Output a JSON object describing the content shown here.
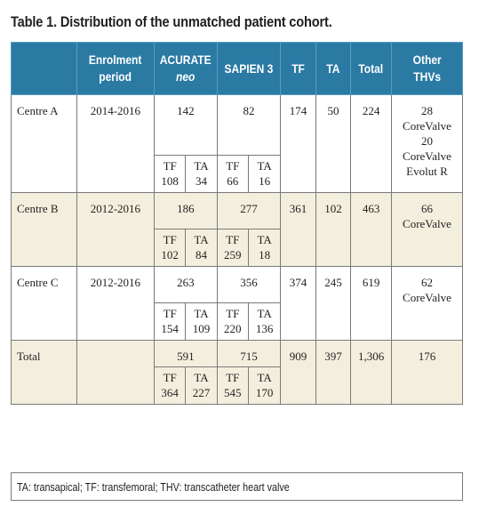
{
  "title": "Table 1. Distribution of the unmatched patient cohort.",
  "headers": {
    "enrolment_l1": "Enrolment",
    "enrolment_l2": "period",
    "acurate_l1": "ACURATE",
    "acurate_l2": "neo",
    "sapien": "SAPIEN 3",
    "tf": "TF",
    "ta": "TA",
    "total": "Total",
    "other_l1": "Other",
    "other_l2": "THVs"
  },
  "sub_labels": {
    "tf": "TF",
    "ta": "TA"
  },
  "rows": [
    {
      "centre": "Centre A",
      "period": "2014-2016",
      "acurate": "142",
      "sapien": "82",
      "tf": "174",
      "ta": "50",
      "total": "224",
      "other_l1": "28",
      "other_l2": "CoreValve",
      "other_l3": "20",
      "other_l4": "CoreValve",
      "other_l5": "Evolut R",
      "acurate_tf": "108",
      "acurate_ta": "34",
      "sapien_tf": "66",
      "sapien_ta": "16"
    },
    {
      "centre": "Centre B",
      "period": "2012-2016",
      "acurate": "186",
      "sapien": "277",
      "tf": "361",
      "ta": "102",
      "total": "463",
      "other_l1": "66",
      "other_l2": "CoreValve",
      "acurate_tf": "102",
      "acurate_ta": "84",
      "sapien_tf": "259",
      "sapien_ta": "18"
    },
    {
      "centre": "Centre C",
      "period": "2012-2016",
      "acurate": "263",
      "sapien": "356",
      "tf": "374",
      "ta": "245",
      "total": "619",
      "other_l1": "62",
      "other_l2": "CoreValve",
      "acurate_tf": "154",
      "acurate_ta": "109",
      "sapien_tf": "220",
      "sapien_ta": "136"
    },
    {
      "centre": "Total",
      "period": "",
      "acurate": "591",
      "sapien": "715",
      "tf": "909",
      "ta": "397",
      "total": "1,306",
      "other_l1": "176",
      "acurate_tf": "364",
      "acurate_ta": "227",
      "sapien_tf": "545",
      "sapien_ta": "170"
    }
  ],
  "footnote": "TA: transapical; TF: transfemoral; THV: transcatheter heart valve"
}
